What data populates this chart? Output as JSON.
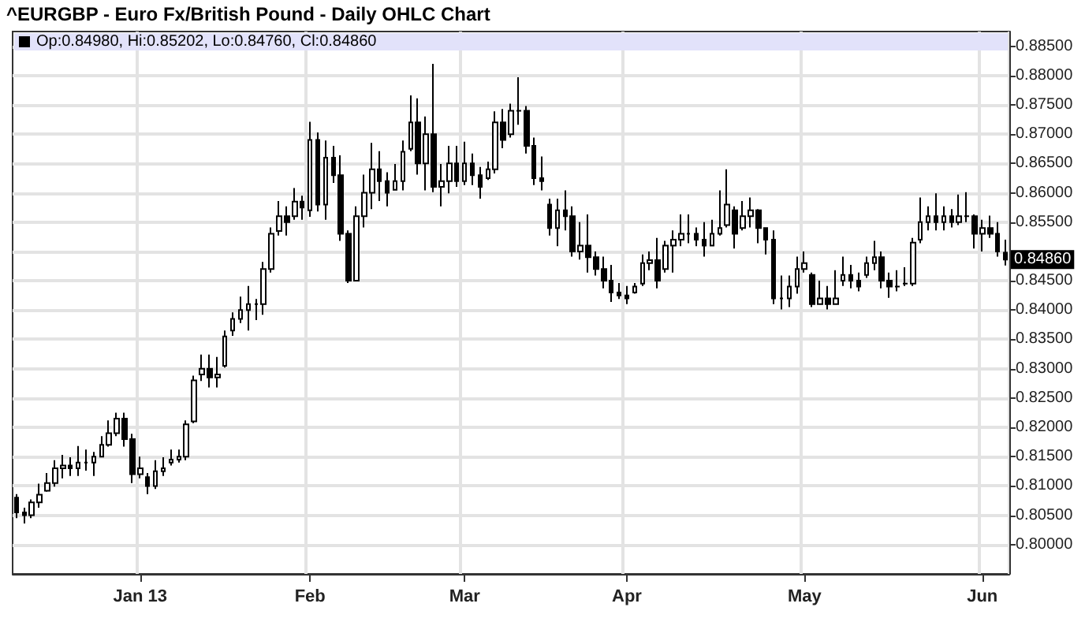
{
  "chart_data": {
    "type": "candlestick",
    "title": "^EURGBP - Euro Fx/British Pound - Daily OHLC Chart",
    "color": "#000000",
    "grid": true,
    "ylim": [
      0.795,
      0.8875
    ],
    "yticks": [
      {
        "value": 0.8,
        "label": "0.80000"
      },
      {
        "value": 0.805,
        "label": "0.80500"
      },
      {
        "value": 0.81,
        "label": "0.81000"
      },
      {
        "value": 0.815,
        "label": "0.81500"
      },
      {
        "value": 0.82,
        "label": "0.82000"
      },
      {
        "value": 0.825,
        "label": "0.82500"
      },
      {
        "value": 0.83,
        "label": "0.83000"
      },
      {
        "value": 0.835,
        "label": "0.83500"
      },
      {
        "value": 0.84,
        "label": "0.84000"
      },
      {
        "value": 0.845,
        "label": "0.84500"
      },
      {
        "value": 0.85,
        "label": null
      },
      {
        "value": 0.855,
        "label": "0.85500"
      },
      {
        "value": 0.86,
        "label": "0.86000"
      },
      {
        "value": 0.865,
        "label": "0.86500"
      },
      {
        "value": 0.87,
        "label": "0.87000"
      },
      {
        "value": 0.875,
        "label": "0.87500"
      },
      {
        "value": 0.88,
        "label": "0.88000"
      },
      {
        "value": 0.885,
        "label": "0.88500"
      }
    ],
    "annotations": [
      "Op:0.84980, Hi:0.85202, Lo:0.84760, Cl:0.84860",
      "0.84860"
    ],
    "categories": [
      null,
      null,
      null,
      null,
      null,
      null,
      null,
      null,
      null,
      null,
      null,
      null,
      null,
      null,
      null,
      null,
      "Jan 13",
      null,
      null,
      null,
      null,
      null,
      null,
      null,
      null,
      null,
      null,
      null,
      null,
      null,
      null,
      null,
      null,
      null,
      null,
      null,
      null,
      null,
      "Feb",
      null,
      null,
      null,
      null,
      null,
      null,
      null,
      null,
      null,
      null,
      null,
      null,
      null,
      null,
      null,
      null,
      null,
      null,
      null,
      "Mar",
      null,
      null,
      null,
      null,
      null,
      null,
      null,
      null,
      null,
      null,
      null,
      null,
      null,
      null,
      null,
      null,
      null,
      null,
      null,
      null,
      "Apr",
      null,
      null,
      null,
      null,
      null,
      null,
      null,
      null,
      null,
      null,
      null,
      null,
      null,
      null,
      null,
      null,
      null,
      null,
      null,
      null,
      null,
      null,
      "May",
      null,
      null,
      null,
      null,
      null,
      null,
      null,
      null,
      null,
      null,
      null,
      null,
      null,
      null,
      null,
      null,
      null,
      null,
      null,
      null,
      null,
      null,
      "Jun",
      null,
      null,
      null
    ],
    "ohlc": [
      [
        0.808,
        0.8086,
        0.8045,
        0.8055
      ],
      [
        0.8055,
        0.8063,
        0.8036,
        0.805
      ],
      [
        0.805,
        0.8077,
        0.8045,
        0.8072
      ],
      [
        0.8072,
        0.8104,
        0.8063,
        0.8085
      ],
      [
        0.8092,
        0.8122,
        0.809,
        0.8105
      ],
      [
        0.8105,
        0.8144,
        0.8099,
        0.813
      ],
      [
        0.813,
        0.8153,
        0.8113,
        0.8135
      ],
      [
        0.8135,
        0.8149,
        0.8117,
        0.813
      ],
      [
        0.813,
        0.8168,
        0.8117,
        0.814
      ],
      [
        0.814,
        0.8162,
        0.8126,
        0.814
      ],
      [
        0.814,
        0.8158,
        0.8117,
        0.815
      ],
      [
        0.815,
        0.8185,
        0.8149,
        0.817
      ],
      [
        0.817,
        0.8212,
        0.8167,
        0.819
      ],
      [
        0.819,
        0.8225,
        0.8185,
        0.8215
      ],
      [
        0.8215,
        0.8225,
        0.8167,
        0.818
      ],
      [
        0.818,
        0.8189,
        0.8105,
        0.812
      ],
      [
        0.812,
        0.815,
        0.8113,
        0.813
      ],
      [
        0.8115,
        0.8122,
        0.8086,
        0.81
      ],
      [
        0.81,
        0.8144,
        0.8095,
        0.8125
      ],
      [
        0.8125,
        0.8149,
        0.8117,
        0.813
      ],
      [
        0.814,
        0.8162,
        0.8135,
        0.8145
      ],
      [
        0.8145,
        0.8162,
        0.814,
        0.815
      ],
      [
        0.815,
        0.8212,
        0.8144,
        0.8205
      ],
      [
        0.821,
        0.8288,
        0.8207,
        0.828
      ],
      [
        0.829,
        0.8324,
        0.8279,
        0.83
      ],
      [
        0.83,
        0.8324,
        0.8268,
        0.8285
      ],
      [
        0.8285,
        0.832,
        0.8268,
        0.829
      ],
      [
        0.8305,
        0.8365,
        0.8302,
        0.8355
      ],
      [
        0.8365,
        0.8396,
        0.8356,
        0.8385
      ],
      [
        0.8385,
        0.8423,
        0.8378,
        0.84
      ],
      [
        0.84,
        0.8441,
        0.8365,
        0.841
      ],
      [
        0.841,
        0.8419,
        0.8383,
        0.841
      ],
      [
        0.841,
        0.8482,
        0.8392,
        0.847
      ],
      [
        0.847,
        0.8541,
        0.8464,
        0.853
      ],
      [
        0.8535,
        0.8586,
        0.8527,
        0.856
      ],
      [
        0.856,
        0.8577,
        0.8527,
        0.855
      ],
      [
        0.856,
        0.8608,
        0.8554,
        0.8585
      ],
      [
        0.8585,
        0.8595,
        0.8554,
        0.8575
      ],
      [
        0.857,
        0.8721,
        0.8559,
        0.869
      ],
      [
        0.869,
        0.8703,
        0.8568,
        0.858
      ],
      [
        0.858,
        0.8689,
        0.8554,
        0.866
      ],
      [
        0.866,
        0.868,
        0.8617,
        0.863
      ],
      [
        0.863,
        0.8664,
        0.8518,
        0.853
      ],
      [
        0.853,
        0.8536,
        0.8446,
        0.845
      ],
      [
        0.845,
        0.8577,
        0.845,
        0.856
      ],
      [
        0.856,
        0.8631,
        0.8541,
        0.86
      ],
      [
        0.86,
        0.8685,
        0.8572,
        0.864
      ],
      [
        0.864,
        0.8671,
        0.8586,
        0.862
      ],
      [
        0.862,
        0.8635,
        0.8577,
        0.86
      ],
      [
        0.8605,
        0.8649,
        0.8604,
        0.862
      ],
      [
        0.862,
        0.8689,
        0.8604,
        0.867
      ],
      [
        0.8675,
        0.8766,
        0.8671,
        0.872
      ],
      [
        0.872,
        0.8761,
        0.8631,
        0.865
      ],
      [
        0.865,
        0.873,
        0.8604,
        0.87
      ],
      [
        0.87,
        0.882,
        0.8601,
        0.861
      ],
      [
        0.861,
        0.8649,
        0.8577,
        0.862
      ],
      [
        0.862,
        0.868,
        0.8599,
        0.865
      ],
      [
        0.865,
        0.868,
        0.861,
        0.862
      ],
      [
        0.862,
        0.8687,
        0.8613,
        0.865
      ],
      [
        0.865,
        0.8667,
        0.8613,
        0.863
      ],
      [
        0.863,
        0.8644,
        0.859,
        0.861
      ],
      [
        0.8625,
        0.8653,
        0.8622,
        0.864
      ],
      [
        0.864,
        0.8739,
        0.8633,
        0.872
      ],
      [
        0.872,
        0.8743,
        0.8676,
        0.869
      ],
      [
        0.87,
        0.8752,
        0.8694,
        0.874
      ],
      [
        0.874,
        0.8797,
        0.8716,
        0.874
      ],
      [
        0.874,
        0.8748,
        0.8667,
        0.868
      ],
      [
        0.868,
        0.8694,
        0.8613,
        0.8625
      ],
      [
        0.8625,
        0.8662,
        0.8604,
        0.862
      ],
      [
        0.858,
        0.859,
        0.8527,
        0.854
      ],
      [
        0.854,
        0.859,
        0.8509,
        0.857
      ],
      [
        0.857,
        0.8604,
        0.8536,
        0.856
      ],
      [
        0.856,
        0.8577,
        0.8491,
        0.85
      ],
      [
        0.85,
        0.855,
        0.8486,
        0.851
      ],
      [
        0.851,
        0.8563,
        0.8464,
        0.849
      ],
      [
        0.849,
        0.85,
        0.8459,
        0.847
      ],
      [
        0.847,
        0.8491,
        0.8437,
        0.845
      ],
      [
        0.845,
        0.8477,
        0.8414,
        0.843
      ],
      [
        0.843,
        0.8446,
        0.8419,
        0.8425
      ],
      [
        0.8425,
        0.8441,
        0.841,
        0.842
      ],
      [
        0.843,
        0.8446,
        0.8428,
        0.844
      ],
      [
        0.8445,
        0.8495,
        0.8441,
        0.848
      ],
      [
        0.848,
        0.85,
        0.8468,
        0.8485
      ],
      [
        0.8485,
        0.8523,
        0.8437,
        0.845
      ],
      [
        0.847,
        0.8518,
        0.8464,
        0.851
      ],
      [
        0.851,
        0.8536,
        0.8464,
        0.852
      ],
      [
        0.852,
        0.8563,
        0.8509,
        0.853
      ],
      [
        0.853,
        0.8563,
        0.8514,
        0.853
      ],
      [
        0.853,
        0.8541,
        0.8509,
        0.852
      ],
      [
        0.852,
        0.855,
        0.8491,
        0.851
      ],
      [
        0.851,
        0.8554,
        0.8509,
        0.853
      ],
      [
        0.853,
        0.8604,
        0.8527,
        0.854
      ],
      [
        0.8545,
        0.864,
        0.8541,
        0.858
      ],
      [
        0.857,
        0.8577,
        0.8505,
        0.853
      ],
      [
        0.854,
        0.8586,
        0.8536,
        0.856
      ],
      [
        0.856,
        0.8592,
        0.8541,
        0.857
      ],
      [
        0.857,
        0.8572,
        0.8514,
        0.854
      ],
      [
        0.854,
        0.8541,
        0.8495,
        0.852
      ],
      [
        0.852,
        0.8536,
        0.841,
        0.842
      ],
      [
        0.842,
        0.8459,
        0.8401,
        0.842
      ],
      [
        0.842,
        0.8459,
        0.8405,
        0.844
      ],
      [
        0.844,
        0.8491,
        0.8428,
        0.847
      ],
      [
        0.847,
        0.85,
        0.8464,
        0.848
      ],
      [
        0.846,
        0.8464,
        0.8405,
        0.841
      ],
      [
        0.841,
        0.845,
        0.841,
        0.842
      ],
      [
        0.842,
        0.8441,
        0.8401,
        0.841
      ],
      [
        0.841,
        0.8468,
        0.841,
        0.842
      ],
      [
        0.845,
        0.8491,
        0.8441,
        0.846
      ],
      [
        0.846,
        0.8477,
        0.8437,
        0.845
      ],
      [
        0.845,
        0.8464,
        0.8432,
        0.844
      ],
      [
        0.846,
        0.8491,
        0.8455,
        0.848
      ],
      [
        0.848,
        0.8518,
        0.8468,
        0.849
      ],
      [
        0.849,
        0.85,
        0.8437,
        0.845
      ],
      [
        0.845,
        0.8464,
        0.8421,
        0.844
      ],
      [
        0.844,
        0.8468,
        0.8432,
        0.844
      ],
      [
        0.8445,
        0.8473,
        0.8441,
        0.8445
      ],
      [
        0.8445,
        0.8523,
        0.8441,
        0.8515
      ],
      [
        0.852,
        0.8592,
        0.8514,
        0.855
      ],
      [
        0.855,
        0.8577,
        0.8536,
        0.856
      ],
      [
        0.856,
        0.8599,
        0.8536,
        0.855
      ],
      [
        0.855,
        0.8577,
        0.8536,
        0.856
      ],
      [
        0.856,
        0.8572,
        0.8541,
        0.855
      ],
      [
        0.855,
        0.8597,
        0.8545,
        0.856
      ],
      [
        0.856,
        0.8601,
        0.855,
        0.856
      ],
      [
        0.856,
        0.8563,
        0.8505,
        0.853
      ],
      [
        0.853,
        0.8554,
        0.85,
        0.854
      ],
      [
        0.854,
        0.8561,
        0.8523,
        0.853
      ],
      [
        0.853,
        0.855,
        0.8491,
        0.85
      ],
      [
        0.8498,
        0.85202,
        0.8476,
        0.8486
      ]
    ]
  }
}
